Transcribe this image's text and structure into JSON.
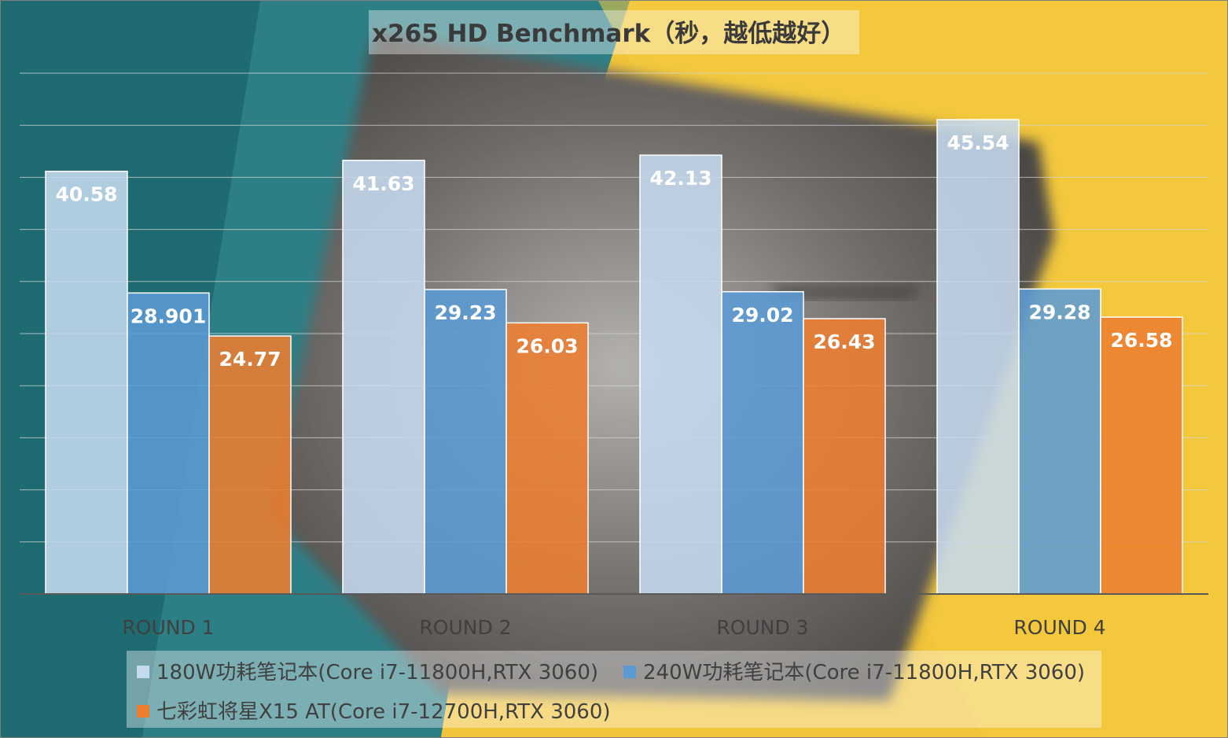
{
  "chart_data": {
    "type": "bar",
    "title": "x265 HD Benchmark（秒，越低越好）",
    "xlabel": "",
    "ylabel": "",
    "ylim": [
      0,
      50
    ],
    "grid": true,
    "legend_position": "bottom",
    "categories": [
      "ROUND 1",
      "ROUND 2",
      "ROUND 3",
      "ROUND 4"
    ],
    "series": [
      {
        "name": "180W功耗笔记本(Core i7-11800H,RTX 3060)",
        "color": "#c5d9ee",
        "values": [
          40.58,
          41.63,
          42.13,
          45.54
        ],
        "labels": [
          "40.58",
          "41.63",
          "42.13",
          "45.54"
        ]
      },
      {
        "name": "240W功耗笔记本(Core i7-11800H,RTX 3060)",
        "color": "#5b9bd5",
        "values": [
          28.901,
          29.23,
          29.02,
          29.28
        ],
        "labels": [
          "28.901",
          "29.23",
          "29.02",
          "29.28"
        ]
      },
      {
        "name": "七彩虹将星X15 AT(Core i7-12700H,RTX 3060)",
        "color": "#ed7d31",
        "values": [
          24.77,
          26.03,
          26.43,
          26.58
        ],
        "labels": [
          "24.77",
          "26.03",
          "26.43",
          "26.58"
        ]
      }
    ]
  }
}
